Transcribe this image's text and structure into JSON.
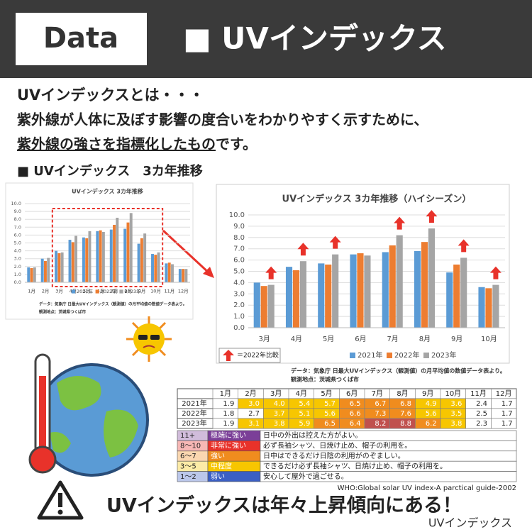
{
  "header": {
    "badge": "Data",
    "title": "■ UVインデックス"
  },
  "intro": {
    "line1": "UVインデックスとは・・・",
    "line2": "紫外線が人体に及ぼす影響の度合いをわかりやすく示すために、",
    "line3a": "紫外線の強さを指標化したもの",
    "line3b": "です。"
  },
  "section_title": "■ UVインデックス　3カ年推移",
  "chart_data": [
    {
      "type": "bar",
      "title": "UVインデックス 3カ年推移",
      "categories": [
        "1月",
        "2月",
        "3月",
        "4月",
        "5月",
        "6月",
        "7月",
        "8月",
        "9月",
        "10月",
        "11月",
        "12月"
      ],
      "series": [
        {
          "name": "2021年",
          "color": "#5b9bd5",
          "values": [
            1.9,
            3.0,
            4.0,
            5.4,
            5.7,
            6.5,
            6.7,
            6.8,
            4.9,
            3.6,
            2.4,
            1.7
          ]
        },
        {
          "name": "2022年",
          "color": "#ed7d31",
          "values": [
            1.8,
            2.7,
            3.7,
            5.1,
            5.6,
            6.6,
            7.3,
            7.6,
            5.6,
            3.5,
            2.5,
            1.7
          ]
        },
        {
          "name": "2023年",
          "color": "#a5a5a5",
          "values": [
            1.9,
            3.1,
            3.8,
            5.9,
            6.5,
            6.4,
            8.2,
            8.8,
            6.2,
            3.8,
            2.3,
            1.7
          ]
        }
      ],
      "ylim": [
        0,
        10
      ],
      "yticks": [
        {
          "value": 0,
          "label": "0.0"
        },
        {
          "value": 1,
          "label": "1.0"
        },
        {
          "value": 2,
          "label": "2.0"
        },
        {
          "value": 3,
          "label": "3.0"
        },
        {
          "value": 4,
          "label": "4.0"
        },
        {
          "value": 5,
          "label": "5.0"
        },
        {
          "value": 6,
          "label": "6.0"
        },
        {
          "value": 7,
          "label": "7.0"
        },
        {
          "value": 8,
          "label": "8.0"
        },
        {
          "value": 9,
          "label": "9.0"
        },
        {
          "value": 10,
          "label": "10.0"
        }
      ],
      "grid": true,
      "legend": "bottom",
      "source": [
        "データ：気象庁 日最大UVインデックス（観測値）の月平均値の数値データ表より。",
        "観測地点：茨城県つくば市"
      ]
    },
    {
      "type": "bar",
      "title": "UVインデックス 3カ年推移（ハイシーズン）",
      "categories": [
        "3月",
        "4月",
        "5月",
        "6月",
        "7月",
        "8月",
        "9月",
        "10月"
      ],
      "series": [
        {
          "name": "2021年",
          "color": "#5b9bd5",
          "values": [
            4.0,
            5.4,
            5.7,
            6.5,
            6.7,
            6.8,
            4.9,
            3.6
          ]
        },
        {
          "name": "2022年",
          "color": "#ed7d31",
          "values": [
            3.7,
            5.1,
            5.6,
            6.6,
            7.3,
            7.6,
            5.6,
            3.5
          ]
        },
        {
          "name": "2023年",
          "color": "#a5a5a5",
          "values": [
            3.8,
            5.9,
            6.5,
            6.4,
            8.2,
            8.8,
            6.2,
            3.8
          ]
        }
      ],
      "ylim": [
        0,
        10
      ],
      "yticks": [
        {
          "value": 0,
          "label": "0.0"
        },
        {
          "value": 1,
          "label": "1.0"
        },
        {
          "value": 2,
          "label": "2.0"
        },
        {
          "value": 3,
          "label": "3.0"
        },
        {
          "value": 4,
          "label": "4.0"
        },
        {
          "value": 5,
          "label": "5.0"
        },
        {
          "value": 6,
          "label": "6.0"
        },
        {
          "value": 7,
          "label": "7.0"
        },
        {
          "value": 8,
          "label": "8.0"
        },
        {
          "value": 9,
          "label": "9.0"
        },
        {
          "value": 10,
          "label": "10.0"
        }
      ],
      "grid": true,
      "legend": "bottom",
      "legend_note": "＝2022年比較",
      "source": [
        "データ：気象庁 日最大UVインデックス（観測値）の月平均値の数値データ表より。",
        "観測地点：茨城県つくば市"
      ]
    }
  ],
  "table": {
    "months": [
      "1月",
      "2月",
      "3月",
      "4月",
      "5月",
      "6月",
      "7月",
      "8月",
      "9月",
      "10月",
      "11月",
      "12月"
    ],
    "rows": [
      {
        "label": "2021年",
        "cells": [
          "1.9",
          "3.0",
          "4.0",
          "5.4",
          "5.7",
          "6.5",
          "6.7",
          "6.8",
          "4.9",
          "3.6",
          "2.4",
          "1.7"
        ]
      },
      {
        "label": "2022年",
        "cells": [
          "1.8",
          "2.7",
          "3.7",
          "5.1",
          "5.6",
          "6.6",
          "7.3",
          "7.6",
          "5.6",
          "3.5",
          "2.5",
          "1.7"
        ]
      },
      {
        "label": "2023年",
        "cells": [
          "1.9",
          "3.1",
          "3.8",
          "5.9",
          "6.5",
          "6.4",
          "8.2",
          "8.8",
          "6.2",
          "3.8",
          "2.3",
          "1.7"
        ]
      }
    ]
  },
  "uv_scale": [
    {
      "level": "11+",
      "label": "極端に強い",
      "advice": "日中の外出は控えた方がよい。",
      "color": "#7b3f98"
    },
    {
      "level": "8〜10",
      "label": "非常に強い",
      "advice": "必ず長袖シャツ、日焼け止め、帽子の利用を。",
      "color": "#e8322a"
    },
    {
      "level": "6〜7",
      "label": "強い",
      "advice": "日中はできるだけ日陰の利用がのぞましい。",
      "color": "#f08c1e"
    },
    {
      "level": "3〜5",
      "label": "中程度",
      "advice": "できるだけ必ず長袖シャツ、日焼け止め、帽子の利用を。",
      "color": "#f7c600"
    },
    {
      "level": "1〜2",
      "label": "弱い",
      "advice": "安心して屋外で過ごせる。",
      "color": "#3b5fc4"
    }
  ],
  "scale_source": "WHO:Global solar UV index-A parctical guide-2002",
  "footer": {
    "message": "UVインデックスは年々上昇傾向にある！",
    "tag": "UVインデックス"
  }
}
